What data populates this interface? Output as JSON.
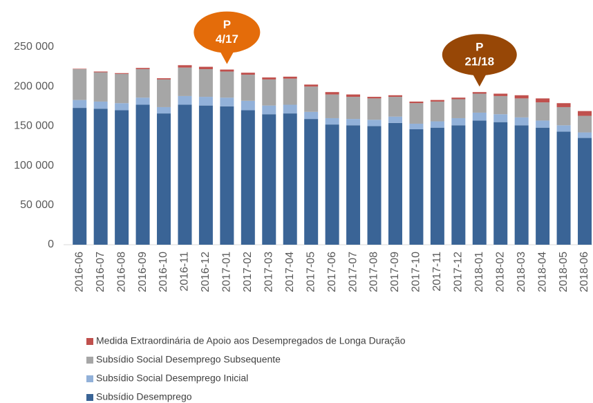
{
  "chart_data": {
    "type": "stacked_bar",
    "categories": [
      "2016-06",
      "2016-07",
      "2016-08",
      "2016-09",
      "2016-10",
      "2016-11",
      "2016-12",
      "2017-01",
      "2017-02",
      "2017-03",
      "2017-04",
      "2017-05",
      "2017-06",
      "2017-07",
      "2017-08",
      "2017-09",
      "2017-10",
      "2017-11",
      "2017-12",
      "2018-01",
      "2018-02",
      "2018-03",
      "2018-04",
      "2018-05",
      "2018-06"
    ],
    "series": [
      {
        "name": "Subsídio Desemprego",
        "color": "#3a6496",
        "values": [
          173000,
          172000,
          170000,
          177000,
          166000,
          177000,
          176000,
          175000,
          170000,
          165000,
          166000,
          159000,
          152000,
          151000,
          150000,
          154000,
          146000,
          148000,
          151000,
          157000,
          155000,
          151000,
          148000,
          143000,
          135000
        ]
      },
      {
        "name": "Subsídio Social Desemprego Inicial",
        "color": "#92b1d9",
        "values": [
          10000,
          9000,
          9000,
          9000,
          8000,
          11000,
          11000,
          11000,
          12000,
          11000,
          11000,
          9000,
          8000,
          8000,
          8000,
          8000,
          7000,
          8000,
          9000,
          10000,
          10000,
          10000,
          9000,
          8000,
          7000
        ]
      },
      {
        "name": "Subsídio Social Desemprego Subsequente",
        "color": "#a6a6a6",
        "values": [
          39000,
          37000,
          37000,
          36000,
          35000,
          36000,
          35000,
          33000,
          33000,
          33000,
          33000,
          32000,
          30000,
          28000,
          27000,
          25000,
          26000,
          25000,
          24000,
          24000,
          23000,
          24000,
          23000,
          23000,
          21000
        ]
      },
      {
        "name": "Medida Extraordinária de Apoio aos Desempregados de Longa Duração",
        "color": "#c0504d",
        "values": [
          500,
          1000,
          1000,
          1500,
          1500,
          3000,
          3000,
          2500,
          2500,
          2500,
          2500,
          2500,
          3000,
          3000,
          2000,
          2000,
          2000,
          2000,
          2000,
          2000,
          3000,
          4000,
          5000,
          5000,
          6000
        ]
      }
    ],
    "ylim": [
      0,
      250000
    ],
    "yticks": [
      0,
      {
        "value": 50000,
        "label": "50 000"
      },
      {
        "value": 100000,
        "label": "100 000"
      },
      {
        "value": 150000,
        "label": "150 000"
      },
      {
        "value": 200000,
        "label": "200 000"
      },
      {
        "value": 250000,
        "label": "250 000"
      }
    ],
    "annotations": [
      {
        "lines": [
          "P",
          "4/17"
        ],
        "category": "2017-01",
        "color": "#e46c0a"
      },
      {
        "lines": [
          "P",
          "21/18"
        ],
        "category": "2018-01",
        "color": "#974706"
      }
    ]
  }
}
